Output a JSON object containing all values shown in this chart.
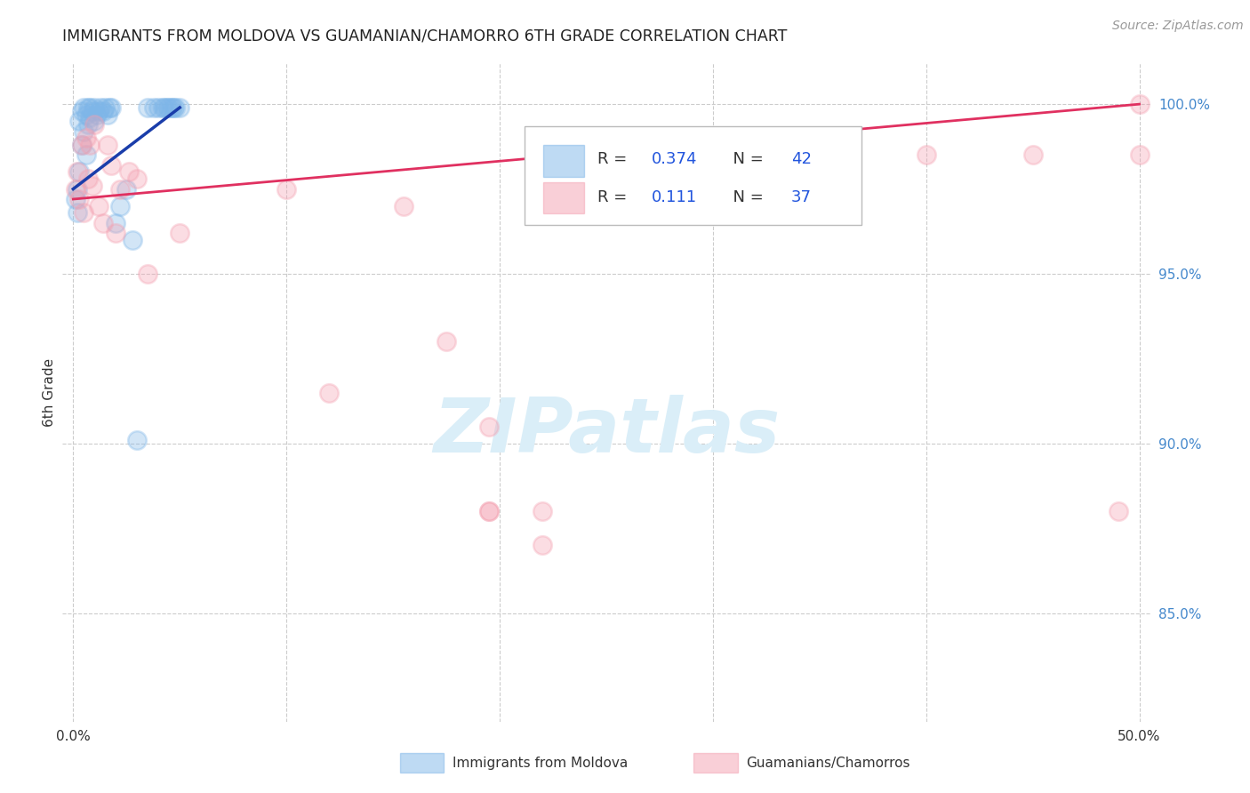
{
  "title": "IMMIGRANTS FROM MOLDOVA VS GUAMANIAN/CHAMORRO 6TH GRADE CORRELATION CHART",
  "source": "Source: ZipAtlas.com",
  "ylabel": "6th Grade",
  "xlim": [
    -0.005,
    0.505
  ],
  "ylim": [
    0.818,
    1.012
  ],
  "xtick_positions": [
    0.0,
    0.1,
    0.2,
    0.3,
    0.4,
    0.5
  ],
  "xticklabels": [
    "0.0%",
    "",
    "",
    "",
    "",
    "50.0%"
  ],
  "ytick_positions": [
    0.85,
    0.9,
    0.95,
    1.0
  ],
  "yticklabels": [
    "85.0%",
    "90.0%",
    "95.0%",
    "100.0%"
  ],
  "blue_color": "#7EB6E8",
  "pink_color": "#F4A0B0",
  "blue_line_color": "#1A3DAA",
  "pink_line_color": "#E03060",
  "r_blue": "0.374",
  "n_blue": "42",
  "r_pink": "0.111",
  "n_pink": "37",
  "legend_label_blue": "Immigrants from Moldova",
  "legend_label_pink": "Guamanians/Chamorros",
  "watermark": "ZIPatlas",
  "bg_color": "#FFFFFF",
  "grid_color": "#CCCCCC",
  "title_color": "#222222",
  "right_tick_color": "#4488CC",
  "blue_x": [
    0.001,
    0.002,
    0.002,
    0.003,
    0.003,
    0.004,
    0.004,
    0.005,
    0.005,
    0.006,
    0.006,
    0.007,
    0.007,
    0.008,
    0.008,
    0.009,
    0.01,
    0.01,
    0.011,
    0.012,
    0.013,
    0.014,
    0.015,
    0.016,
    0.017,
    0.018,
    0.02,
    0.022,
    0.025,
    0.028,
    0.03,
    0.035,
    0.038,
    0.04,
    0.042,
    0.043,
    0.044,
    0.045,
    0.046,
    0.047,
    0.048,
    0.05
  ],
  "blue_y": [
    0.972,
    0.975,
    0.968,
    0.995,
    0.98,
    0.998,
    0.988,
    0.999,
    0.992,
    0.997,
    0.985,
    0.999,
    0.994,
    0.999,
    0.996,
    0.998,
    0.999,
    0.995,
    0.997,
    0.998,
    0.999,
    0.998,
    0.999,
    0.997,
    0.999,
    0.999,
    0.965,
    0.97,
    0.975,
    0.96,
    0.901,
    0.999,
    0.999,
    0.999,
    0.999,
    0.999,
    0.999,
    0.999,
    0.999,
    0.999,
    0.999,
    0.999
  ],
  "pink_x": [
    0.001,
    0.002,
    0.003,
    0.004,
    0.005,
    0.006,
    0.007,
    0.008,
    0.009,
    0.01,
    0.012,
    0.014,
    0.016,
    0.018,
    0.02,
    0.022,
    0.026,
    0.03,
    0.035,
    0.05,
    0.1,
    0.12,
    0.155,
    0.175,
    0.195,
    0.22,
    0.255,
    0.285,
    0.195,
    0.22,
    0.195,
    0.22,
    0.4,
    0.45,
    0.49,
    0.5,
    0.5
  ],
  "pink_y": [
    0.975,
    0.98,
    0.972,
    0.988,
    0.968,
    0.99,
    0.978,
    0.988,
    0.976,
    0.994,
    0.97,
    0.965,
    0.988,
    0.982,
    0.962,
    0.975,
    0.98,
    0.978,
    0.95,
    0.962,
    0.975,
    0.915,
    0.97,
    0.93,
    0.905,
    0.975,
    0.975,
    0.98,
    0.88,
    0.88,
    0.88,
    0.87,
    0.985,
    0.985,
    0.88,
    0.985,
    1.0
  ],
  "blue_trendline_x": [
    0.0,
    0.05
  ],
  "blue_trendline_y": [
    0.975,
    0.999
  ],
  "pink_trendline_x": [
    0.0,
    0.5
  ],
  "pink_trendline_y": [
    0.972,
    1.0
  ]
}
